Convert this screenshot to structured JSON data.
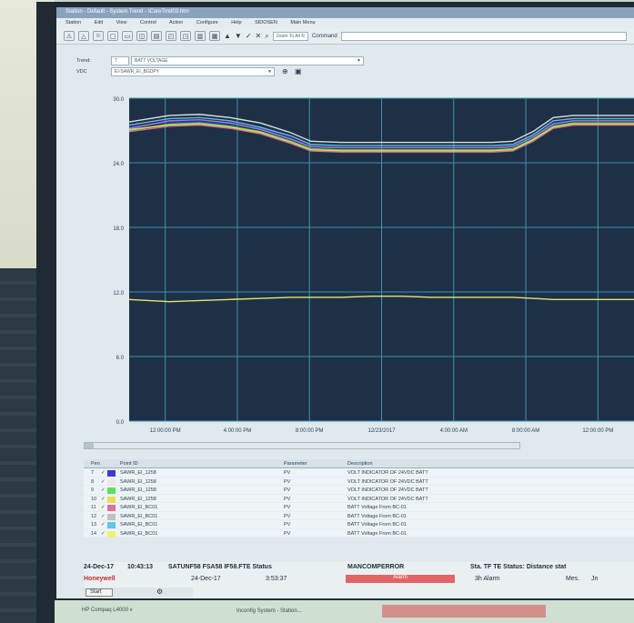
{
  "window": {
    "title": "Station - Default - System Trend - \\CoreTrnd03.htm",
    "menu": [
      "Station",
      "Edit",
      "View",
      "Control",
      "Action",
      "Configure",
      "Help",
      "SIDOSEN",
      "Main Menu"
    ],
    "goto_label": "Zoom To Alt R",
    "command_label": "Command"
  },
  "trend_row": {
    "label": "Trend:",
    "number": "7",
    "value": "BATT VOLTAGE"
  },
  "vdc_row": {
    "label": "VDC",
    "value": "EI-SAWR_EI_BGDPY"
  },
  "chart_data": {
    "type": "line",
    "yticks": [
      "30.0",
      "24.0",
      "18.0",
      "12.0",
      "6.0",
      "0.0"
    ],
    "ylim": [
      0,
      30
    ],
    "xticks": [
      "12:00:00 PM",
      "4:00:00 PM",
      "8:00:00 PM",
      "12/23/2017",
      "4:00:00 AM",
      "8:00:00 AM",
      "12:00:00 PM"
    ],
    "x": [
      0,
      8,
      14,
      20,
      26,
      32,
      36,
      42,
      48,
      54,
      60,
      66,
      72,
      76,
      80,
      84,
      88,
      94,
      100
    ],
    "series": [
      {
        "color": "#3a3ad8",
        "values": [
          27.3,
          27.8,
          27.8,
          27.6,
          27.2,
          26.3,
          25.5,
          25.4,
          25.4,
          25.4,
          25.4,
          25.4,
          25.4,
          25.5,
          26.4,
          27.7,
          27.9,
          27.9,
          27.9
        ]
      },
      {
        "color": "#e8e8e8",
        "values": [
          27.8,
          28.4,
          28.5,
          28.2,
          27.7,
          26.8,
          26.0,
          25.9,
          25.9,
          25.9,
          25.9,
          25.9,
          25.9,
          26.0,
          26.9,
          28.2,
          28.4,
          28.4,
          28.4
        ]
      },
      {
        "color": "#5fe05f",
        "values": [
          27.0,
          27.6,
          27.7,
          27.4,
          26.9,
          26.0,
          25.3,
          25.2,
          25.2,
          25.2,
          25.2,
          25.2,
          25.2,
          25.3,
          26.2,
          27.4,
          27.7,
          27.7,
          27.7
        ]
      },
      {
        "color": "#e8e050",
        "values": [
          27.1,
          27.5,
          27.6,
          27.3,
          26.8,
          25.9,
          25.2,
          25.1,
          25.1,
          25.1,
          25.1,
          25.1,
          25.1,
          25.2,
          26.1,
          27.3,
          27.6,
          27.6,
          27.6
        ]
      },
      {
        "color": "#e070a0",
        "values": [
          26.9,
          27.4,
          27.5,
          27.2,
          26.7,
          25.8,
          25.1,
          25.0,
          25.0,
          25.0,
          25.0,
          25.0,
          25.0,
          25.1,
          26.0,
          27.2,
          27.5,
          27.5,
          27.5
        ]
      },
      {
        "color": "#60c8e8",
        "values": [
          27.5,
          28.1,
          28.2,
          27.9,
          27.3,
          26.5,
          25.7,
          25.6,
          25.6,
          25.6,
          25.6,
          25.6,
          25.6,
          25.7,
          26.6,
          27.9,
          28.1,
          28.1,
          28.1
        ]
      },
      {
        "color": "#b080e0",
        "values": [
          27.2,
          27.9,
          28.0,
          27.7,
          27.1,
          26.2,
          25.5,
          25.4,
          25.4,
          25.4,
          25.4,
          25.4,
          25.4,
          25.5,
          26.4,
          27.6,
          27.9,
          27.9,
          27.9
        ]
      },
      {
        "color": "#f0f070",
        "values": [
          11.3,
          11.1,
          11.2,
          11.3,
          11.4,
          11.5,
          11.5,
          11.5,
          11.6,
          11.6,
          11.5,
          11.5,
          11.5,
          11.5,
          11.4,
          11.3,
          11.3,
          11.3,
          11.3
        ]
      }
    ]
  },
  "pen_table": {
    "headers": [
      "Pen",
      "Point ID",
      "Parameter",
      "Description"
    ],
    "rows": [
      {
        "pen": "7",
        "color": "#3a3ad8",
        "id": "SAWR_EI_1258",
        "param": "PV",
        "desc": "VOLT INDICATOR OF 24VDC BATT"
      },
      {
        "pen": "8",
        "color": "#e8e8e8",
        "id": "SAWR_EI_1258",
        "param": "PV",
        "desc": "VOLT INDICATOR OF 24VDC BATT"
      },
      {
        "pen": "9",
        "color": "#5fe05f",
        "id": "SAWR_EI_1258",
        "param": "PV",
        "desc": "VOLT INDICATOR OF 24VDC BATT"
      },
      {
        "pen": "10",
        "color": "#e8e050",
        "id": "SAWR_EI_1258",
        "param": "PV",
        "desc": "VOLT INDICATOR OF 24VDC BATT"
      },
      {
        "pen": "11",
        "color": "#e070a0",
        "id": "SAWR_EI_BC01",
        "param": "PV",
        "desc": "BATT Voltage From BC-01"
      },
      {
        "pen": "12",
        "color": "#c0c0c0",
        "id": "SAWR_EI_BC01",
        "param": "PV",
        "desc": "BATT Voltage From BC-01"
      },
      {
        "pen": "13",
        "color": "#60c8e8",
        "id": "SAWR_EI_BC01",
        "param": "PV",
        "desc": "BATT Voltage From BC-01"
      },
      {
        "pen": "14",
        "color": "#f0f070",
        "id": "SAWR_EI_BC01",
        "param": "PV",
        "desc": "BATT Voltage From BC-01"
      }
    ]
  },
  "status": {
    "date_bold": "24-Dec-17",
    "time_bold": "10:43:13",
    "status_text": "SATUNF58 FSA58 IF58.FTE Status",
    "alarm_type": "MANCOMPERROR",
    "status_right": "Sta. TF TE Status: Distance stat",
    "brand": "Honeywell",
    "date": "24-Dec-17",
    "time": "3:53:37",
    "alarm_label": "Alarm",
    "alarm_count": "3h Alarm",
    "mes_label": "Mes.",
    "jn_label": "Jn",
    "start_label": "Start"
  },
  "taskbar": {
    "item1": "HP Compaq L4000 v",
    "item2": "Inconfig System - Station..."
  }
}
